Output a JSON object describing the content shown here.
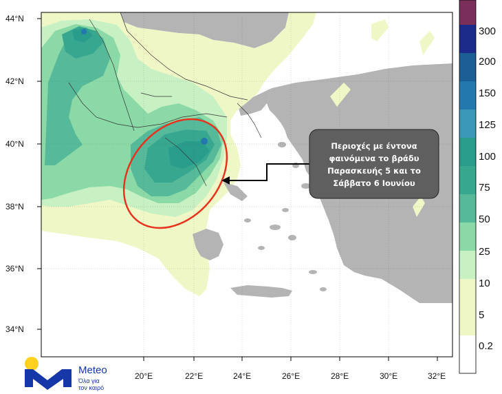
{
  "map": {
    "lat_labels": [
      "44°N",
      "42°N",
      "40°N",
      "38°N",
      "36°N",
      "34°N"
    ],
    "lon_labels": [
      "20°E",
      "22°E",
      "24°E",
      "26°E",
      "28°E",
      "30°E",
      "32°E"
    ]
  },
  "colorbar": {
    "levels": [
      "300",
      "200",
      "150",
      "125",
      "100",
      "75",
      "50",
      "25",
      "10",
      "5",
      "0.2"
    ],
    "colors": {
      "top": "#7a2f5a",
      "c300": "#1c2a8a",
      "c200": "#1d5f95",
      "c150": "#2378ad",
      "c125": "#3a98b8",
      "c100": "#2a9c8c",
      "c75": "#37a88f",
      "c50": "#55b99a",
      "c25": "#8ad9a6",
      "c10": "#c7f0c3",
      "c5": "#eef7c5",
      "c02": "#ffffff"
    }
  },
  "callout": {
    "lines": [
      "Περιοχές με έντονα",
      "φαινόμενα  το βράδυ",
      "Παρασκευής 5 και το",
      "Σάββατο 6 Ιουνίου"
    ]
  },
  "logo": {
    "name": "Meteo",
    "tagline_1": "Όλα για",
    "tagline_2": "τον καιρό"
  },
  "colors": {
    "land_gray": "#b4b4b4",
    "sea": "#ffffff",
    "ellipse": "#e8321e",
    "callout_bg": "#5f5f5f",
    "logo_blue": "#1637a8",
    "logo_yellow": "#ffd21f"
  }
}
